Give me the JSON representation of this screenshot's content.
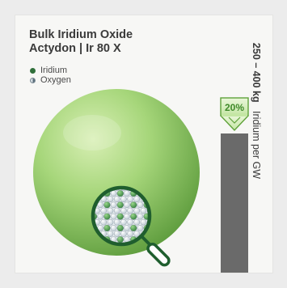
{
  "title": {
    "line1": "Bulk Iridium Oxide",
    "line2": "Actydon | Ir 80 X"
  },
  "legend": {
    "items": [
      {
        "label": "Iridium",
        "color": "#2f6f3a"
      },
      {
        "label": "Oxygen",
        "color": "#d9e1e6"
      }
    ]
  },
  "badge": {
    "label": "20%",
    "color": "#5fa23a"
  },
  "bar": {
    "value_text": "250 – 400 kg",
    "unit_text": "Iridium per GW",
    "color": "#6a6a6a"
  },
  "colors": {
    "sphere": "#9ad16a",
    "magnifier": "#1f5e2e"
  },
  "icons": [
    "magnifier-icon",
    "arrow-down-icon"
  ]
}
